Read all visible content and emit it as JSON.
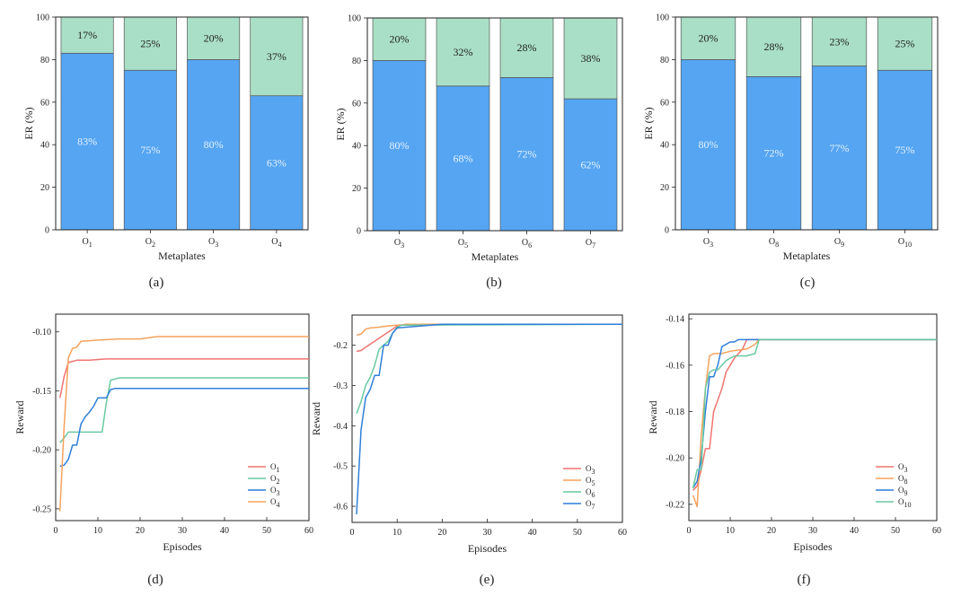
{
  "colors": {
    "bar_bottom": "#55A5F2",
    "bar_top": "#A9DFC6",
    "bar_stroke": "#555555",
    "label_light": "#E6F1FF",
    "label_dark": "#222222",
    "series": [
      "#F07470",
      "#F5A25D",
      "#69C9A0",
      "#2F7FD9"
    ]
  },
  "chart_data": [
    {
      "panel_label": "(a)",
      "type": "bar",
      "xlabel": "Metaplates",
      "ylabel": "ER (%)",
      "ylim": [
        0,
        100
      ],
      "yticks": [
        0,
        20,
        40,
        60,
        80,
        100
      ],
      "categories": [
        "O",
        "O",
        "O",
        "O"
      ],
      "category_subs": [
        "1",
        "2",
        "3",
        "4"
      ],
      "series": [
        {
          "values": [
            83,
            75,
            80,
            63
          ],
          "labels": [
            "83%",
            "75%",
            "80%",
            "63%"
          ]
        },
        {
          "values": [
            17,
            25,
            20,
            37
          ],
          "labels": [
            "17%",
            "25%",
            "20%",
            "37%"
          ]
        }
      ]
    },
    {
      "panel_label": "(b)",
      "type": "bar",
      "xlabel": "Metaplates",
      "ylabel": "ER (%)",
      "ylim": [
        0,
        100
      ],
      "yticks": [
        0,
        20,
        40,
        60,
        80,
        100
      ],
      "categories": [
        "O",
        "O",
        "O",
        "O"
      ],
      "category_subs": [
        "3",
        "5",
        "6",
        "7"
      ],
      "series": [
        {
          "values": [
            80,
            68,
            72,
            62
          ],
          "labels": [
            "80%",
            "68%",
            "72%",
            "62%"
          ]
        },
        {
          "values": [
            20,
            32,
            28,
            38
          ],
          "labels": [
            "20%",
            "32%",
            "28%",
            "38%"
          ]
        }
      ]
    },
    {
      "panel_label": "(c)",
      "type": "bar",
      "xlabel": "Metaplates",
      "ylabel": "ER (%)",
      "ylim": [
        0,
        100
      ],
      "yticks": [
        0,
        20,
        40,
        60,
        80,
        100
      ],
      "categories": [
        "O",
        "O",
        "O",
        "O"
      ],
      "category_subs": [
        "3",
        "8",
        "9",
        "10"
      ],
      "series": [
        {
          "values": [
            80,
            72,
            77,
            75
          ],
          "labels": [
            "80%",
            "72%",
            "77%",
            "75%"
          ]
        },
        {
          "values": [
            20,
            28,
            23,
            25
          ],
          "labels": [
            "20%",
            "28%",
            "23%",
            "25%"
          ]
        }
      ]
    },
    {
      "panel_label": "(d)",
      "type": "line",
      "xlabel": "Episodes",
      "ylabel": "Reward",
      "xlim": [
        0,
        60
      ],
      "ylim": [
        -0.26,
        -0.085
      ],
      "xticks": [
        0,
        10,
        20,
        30,
        40,
        50,
        60
      ],
      "yticks": [
        -0.25,
        -0.2,
        -0.15,
        -0.1
      ],
      "ytick_labels": [
        "-0.25",
        "-0.20",
        "-0.15",
        "-0.10"
      ],
      "legend": "bottom-right",
      "series": [
        {
          "name": "O",
          "sub": "1",
          "color": "#F07470",
          "x": [
            1,
            2,
            3,
            4,
            5,
            8,
            12,
            60
          ],
          "y": [
            -0.156,
            -0.138,
            -0.126,
            -0.125,
            -0.124,
            -0.124,
            -0.123,
            -0.123
          ]
        },
        {
          "name": "O",
          "sub": "2",
          "color": "#69C9A0",
          "x": [
            1,
            2,
            3,
            4,
            5,
            11,
            12,
            13,
            15,
            60
          ],
          "y": [
            -0.194,
            -0.19,
            -0.185,
            -0.185,
            -0.185,
            -0.185,
            -0.16,
            -0.141,
            -0.139,
            -0.139
          ]
        },
        {
          "name": "O",
          "sub": "3",
          "color": "#2F7FD9",
          "x": [
            1,
            2,
            3,
            4,
            5,
            6,
            7,
            8,
            9,
            10,
            11,
            12,
            13,
            14,
            60
          ],
          "y": [
            -0.214,
            -0.213,
            -0.208,
            -0.196,
            -0.196,
            -0.178,
            -0.172,
            -0.168,
            -0.163,
            -0.156,
            -0.156,
            -0.156,
            -0.149,
            -0.148,
            -0.148
          ]
        },
        {
          "name": "O",
          "sub": "4",
          "color": "#F5A25D",
          "x": [
            1,
            2,
            3,
            4,
            5,
            6,
            10,
            15,
            20,
            24,
            60
          ],
          "y": [
            -0.252,
            -0.18,
            -0.122,
            -0.114,
            -0.113,
            -0.108,
            -0.107,
            -0.106,
            -0.106,
            -0.104,
            -0.104
          ]
        }
      ]
    },
    {
      "panel_label": "(e)",
      "type": "line",
      "xlabel": "Episodes",
      "ylabel": "Reward",
      "xlim": [
        0,
        60
      ],
      "ylim": [
        -0.64,
        -0.125
      ],
      "xticks": [
        0,
        10,
        20,
        30,
        40,
        50,
        60
      ],
      "yticks": [
        -0.6,
        -0.5,
        -0.4,
        -0.3,
        -0.2
      ],
      "ytick_labels": [
        "-0.6",
        "-0.5",
        "-0.4",
        "-0.3",
        "-0.2"
      ],
      "legend": "bottom-right",
      "series": [
        {
          "name": "O",
          "sub": "3",
          "color": "#F07470",
          "x": [
            1,
            2,
            3,
            5,
            7,
            9,
            10,
            12,
            60
          ],
          "y": [
            -0.215,
            -0.213,
            -0.205,
            -0.19,
            -0.175,
            -0.16,
            -0.152,
            -0.148,
            -0.148
          ]
        },
        {
          "name": "O",
          "sub": "5",
          "color": "#F5A25D",
          "x": [
            1,
            2,
            3,
            4,
            6,
            8,
            10,
            13,
            60
          ],
          "y": [
            -0.175,
            -0.172,
            -0.16,
            -0.157,
            -0.155,
            -0.152,
            -0.15,
            -0.148,
            -0.148
          ]
        },
        {
          "name": "O",
          "sub": "6",
          "color": "#69C9A0",
          "x": [
            1,
            2,
            3,
            4,
            5,
            6,
            7,
            8,
            9,
            10,
            11,
            60
          ],
          "y": [
            -0.37,
            -0.34,
            -0.3,
            -0.28,
            -0.25,
            -0.21,
            -0.2,
            -0.19,
            -0.17,
            -0.155,
            -0.15,
            -0.148
          ]
        },
        {
          "name": "O",
          "sub": "7",
          "color": "#2F7FD9",
          "x": [
            1,
            2,
            3,
            4,
            5,
            6,
            7,
            8,
            9,
            10,
            12,
            20,
            60
          ],
          "y": [
            -0.62,
            -0.41,
            -0.33,
            -0.31,
            -0.275,
            -0.275,
            -0.2,
            -0.2,
            -0.17,
            -0.157,
            -0.155,
            -0.148,
            -0.148
          ]
        }
      ]
    },
    {
      "panel_label": "(f)",
      "type": "line",
      "xlabel": "Episodes",
      "ylabel": "Reward",
      "xlim": [
        0,
        60
      ],
      "ylim": [
        -0.227,
        -0.138
      ],
      "xticks": [
        0,
        10,
        20,
        30,
        40,
        50,
        60
      ],
      "yticks": [
        -0.22,
        -0.2,
        -0.18,
        -0.16,
        -0.14
      ],
      "ytick_labels": [
        "-0.22",
        "-0.20",
        "-0.18",
        "-0.16",
        "-0.14"
      ],
      "legend": "bottom-right",
      "series": [
        {
          "name": "O",
          "sub": "3",
          "color": "#F07470",
          "x": [
            1,
            2,
            3,
            4,
            5,
            6,
            7,
            8,
            9,
            10,
            11,
            12,
            13,
            14,
            60
          ],
          "y": [
            -0.214,
            -0.212,
            -0.205,
            -0.196,
            -0.196,
            -0.18,
            -0.175,
            -0.17,
            -0.163,
            -0.16,
            -0.157,
            -0.155,
            -0.153,
            -0.149,
            -0.149
          ]
        },
        {
          "name": "O",
          "sub": "8",
          "color": "#F5A25D",
          "x": [
            1,
            2,
            3,
            4,
            5,
            6,
            8,
            10,
            14,
            16,
            17,
            60
          ],
          "y": [
            -0.216,
            -0.221,
            -0.19,
            -0.17,
            -0.156,
            -0.155,
            -0.155,
            -0.154,
            -0.153,
            -0.151,
            -0.149,
            -0.149
          ]
        },
        {
          "name": "O",
          "sub": "9",
          "color": "#2F7FD9",
          "x": [
            1,
            2,
            3,
            4,
            5,
            6,
            7,
            8,
            9,
            10,
            11,
            12,
            13,
            14,
            15,
            60
          ],
          "y": [
            -0.213,
            -0.21,
            -0.2,
            -0.18,
            -0.165,
            -0.165,
            -0.16,
            -0.152,
            -0.151,
            -0.15,
            -0.15,
            -0.149,
            -0.149,
            -0.149,
            -0.149,
            -0.149
          ]
        },
        {
          "name": "O",
          "sub": "10",
          "color": "#69C9A0",
          "x": [
            1,
            2,
            3,
            4,
            5,
            6,
            7,
            8,
            9,
            10,
            11,
            14,
            16,
            17,
            60
          ],
          "y": [
            -0.213,
            -0.205,
            -0.205,
            -0.17,
            -0.163,
            -0.162,
            -0.162,
            -0.16,
            -0.158,
            -0.157,
            -0.156,
            -0.156,
            -0.155,
            -0.149,
            -0.149
          ]
        }
      ]
    }
  ]
}
